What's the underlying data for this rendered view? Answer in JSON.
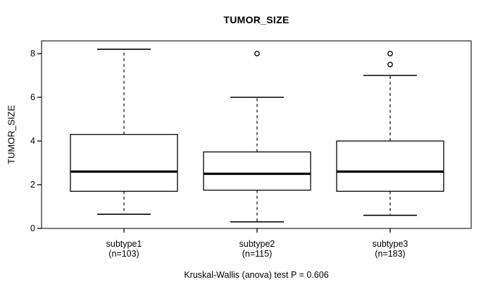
{
  "title": "TUMOR_SIZE",
  "caption": "Kruskal-Wallis (anova) test P = 0.606",
  "chart_data": {
    "type": "boxplot",
    "title": "TUMOR_SIZE",
    "ylabel": "TUMOR_SIZE",
    "xlabel": "",
    "ylim": [
      0,
      8.6
    ],
    "yticks": [
      0,
      2,
      4,
      6,
      8
    ],
    "grid": false,
    "legend": "none",
    "caption": "Kruskal-Wallis (anova) test P = 0.606",
    "groups": [
      {
        "label": "subtype1",
        "n_label": "(n=103)",
        "n": 103,
        "whisker_low": 0.65,
        "q1": 1.7,
        "median": 2.6,
        "q3": 4.3,
        "whisker_high": 8.2,
        "outliers": []
      },
      {
        "label": "subtype2",
        "n_label": "(n=115)",
        "n": 115,
        "whisker_low": 0.3,
        "q1": 1.75,
        "median": 2.5,
        "q3": 3.5,
        "whisker_high": 6.0,
        "outliers": [
          8.0
        ]
      },
      {
        "label": "subtype3",
        "n_label": "(n=183)",
        "n": 183,
        "whisker_low": 0.6,
        "q1": 1.7,
        "median": 2.6,
        "q3": 4.0,
        "whisker_high": 7.0,
        "outliers": [
          7.5,
          8.0
        ]
      }
    ],
    "colors": {
      "box_fill": "#ffffff",
      "line": "#000000",
      "frame": "#4d4d4d",
      "background": "#ffffff"
    }
  }
}
